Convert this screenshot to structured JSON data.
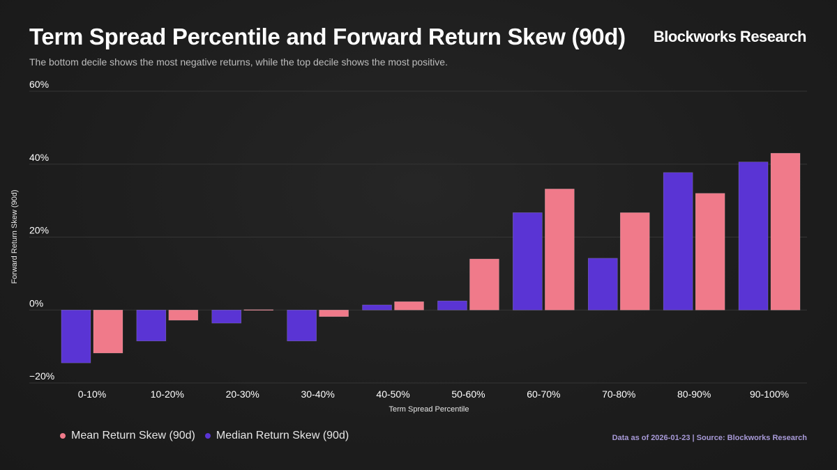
{
  "header": {
    "title": "Term Spread Percentile and Forward Return Skew (90d)",
    "brand": "Blockworks Research",
    "subtitle": "The bottom decile shows the most negative returns, while the top decile shows the most positive."
  },
  "footer": {
    "source": "Data as of 2026-01-23 | Source: Blockworks Research"
  },
  "colors": {
    "mean": "#f07a8a",
    "median": "#5a34d4",
    "grid": "#353535",
    "background": "#1e1e1e"
  },
  "chart_data": {
    "type": "bar",
    "title": "Term Spread Percentile and Forward Return Skew (90d)",
    "xlabel": "Term Spread Percentile",
    "ylabel": "Forward Return Skew (90d)",
    "ylim": [
      -20,
      60
    ],
    "yticks": [
      -20,
      0,
      20,
      40,
      60
    ],
    "ytick_labels": [
      "−20%",
      "0%",
      "20%",
      "40%",
      "60%"
    ],
    "grid": true,
    "legend_position": "bottom-left",
    "categories": [
      "0-10%",
      "10-20%",
      "20-30%",
      "30-40%",
      "40-50%",
      "50-60%",
      "60-70%",
      "70-80%",
      "80-90%",
      "90-100%"
    ],
    "series": [
      {
        "name": "Median Return Skew (90d)",
        "color": "#5a34d4",
        "values": [
          -14.5,
          -8.5,
          -3.6,
          -8.5,
          1.4,
          2.5,
          26.7,
          14.2,
          37.7,
          40.6
        ]
      },
      {
        "name": "Mean Return Skew (90d)",
        "color": "#f07a8a",
        "values": [
          -11.8,
          -2.8,
          0.1,
          -1.8,
          2.3,
          14.0,
          33.2,
          26.7,
          32.0,
          43.0
        ]
      }
    ]
  },
  "legend": [
    {
      "label": "Mean Return Skew (90d)",
      "color": "#f07a8a"
    },
    {
      "label": "Median Return Skew (90d)",
      "color": "#5a34d4"
    }
  ]
}
